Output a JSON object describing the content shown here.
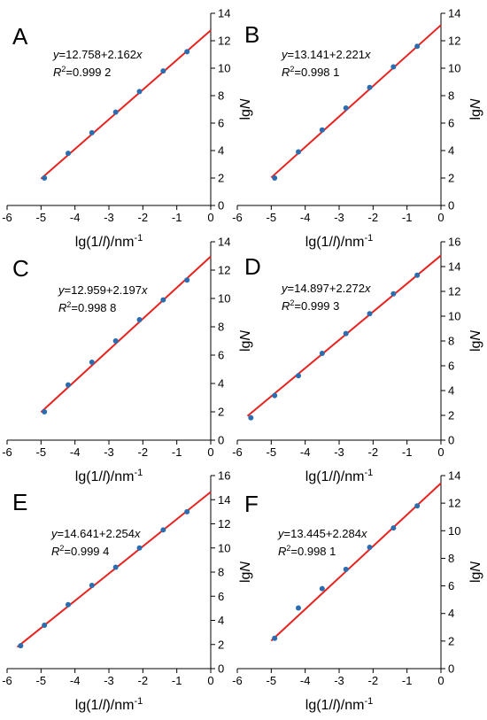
{
  "chart_data": [
    {
      "panel": "A",
      "type": "scatter",
      "xlabel": "lg(1/l)/nm-1",
      "ylabel": "lgN",
      "xlim": [
        -6,
        0
      ],
      "ylim": [
        0,
        14
      ],
      "xticks": [
        -6,
        -5,
        -4,
        -3,
        -2,
        -1,
        0
      ],
      "yticks": [
        0,
        2,
        4,
        6,
        8,
        10,
        12,
        14
      ],
      "equation": "y=12.758+2.162x",
      "r2": "R2=0.999 2",
      "fit": {
        "intercept": 12.758,
        "slope": 2.162
      },
      "points": [
        {
          "x": -4.9,
          "y": 2.0
        },
        {
          "x": -4.2,
          "y": 3.8
        },
        {
          "x": -3.5,
          "y": 5.3
        },
        {
          "x": -2.8,
          "y": 6.8
        },
        {
          "x": -2.1,
          "y": 8.3
        },
        {
          "x": -1.4,
          "y": 9.8
        },
        {
          "x": -0.7,
          "y": 11.2
        }
      ]
    },
    {
      "panel": "B",
      "type": "scatter",
      "xlabel": "lg(1/l)/nm-1",
      "ylabel": "lgN",
      "xlim": [
        -6,
        0
      ],
      "ylim": [
        0,
        14
      ],
      "xticks": [
        -6,
        -5,
        -4,
        -3,
        -2,
        -1,
        0
      ],
      "yticks": [
        0,
        2,
        4,
        6,
        8,
        10,
        12,
        14
      ],
      "equation": "y=13.141+2.221x",
      "r2": "R2=0.998 1",
      "fit": {
        "intercept": 13.141,
        "slope": 2.221
      },
      "points": [
        {
          "x": -4.9,
          "y": 2.0
        },
        {
          "x": -4.2,
          "y": 3.9
        },
        {
          "x": -3.5,
          "y": 5.5
        },
        {
          "x": -2.8,
          "y": 7.1
        },
        {
          "x": -2.1,
          "y": 8.6
        },
        {
          "x": -1.4,
          "y": 10.1
        },
        {
          "x": -0.7,
          "y": 11.6
        }
      ]
    },
    {
      "panel": "C",
      "type": "scatter",
      "xlabel": "lg(1/l)/nm-1",
      "ylabel": "lgN",
      "xlim": [
        -6,
        0
      ],
      "ylim": [
        0,
        14
      ],
      "xticks": [
        -6,
        -5,
        -4,
        -3,
        -2,
        -1,
        0
      ],
      "yticks": [
        0,
        2,
        4,
        6,
        8,
        10,
        12,
        14
      ],
      "equation": "y=12.959+2.197x",
      "r2": "R2=0.998 8",
      "fit": {
        "intercept": 12.959,
        "slope": 2.197
      },
      "points": [
        {
          "x": -4.9,
          "y": 2.0
        },
        {
          "x": -4.2,
          "y": 3.9
        },
        {
          "x": -3.5,
          "y": 5.5
        },
        {
          "x": -2.8,
          "y": 7.0
        },
        {
          "x": -2.1,
          "y": 8.5
        },
        {
          "x": -1.4,
          "y": 9.9
        },
        {
          "x": -0.7,
          "y": 11.3
        }
      ]
    },
    {
      "panel": "D",
      "type": "scatter",
      "xlabel": "lg(1/l)/nm-1",
      "ylabel": "lgN",
      "xlim": [
        -6,
        0
      ],
      "ylim": [
        0,
        16
      ],
      "xticks": [
        -6,
        -5,
        -4,
        -3,
        -2,
        -1,
        0
      ],
      "yticks": [
        0,
        2,
        4,
        6,
        8,
        10,
        12,
        14,
        16
      ],
      "equation": "y=14.897+2.272x",
      "r2": "R2=0.999 3",
      "fit": {
        "intercept": 14.897,
        "slope": 2.272
      },
      "points": [
        {
          "x": -5.6,
          "y": 1.8
        },
        {
          "x": -4.9,
          "y": 3.6
        },
        {
          "x": -4.2,
          "y": 5.2
        },
        {
          "x": -3.5,
          "y": 7.0
        },
        {
          "x": -2.8,
          "y": 8.6
        },
        {
          "x": -2.1,
          "y": 10.2
        },
        {
          "x": -1.4,
          "y": 11.8
        },
        {
          "x": -0.7,
          "y": 13.3
        }
      ]
    },
    {
      "panel": "E",
      "type": "scatter",
      "xlabel": "lg(1/l)/nm-1",
      "ylabel": "lgN",
      "xlim": [
        -6,
        0
      ],
      "ylim": [
        0,
        16
      ],
      "xticks": [
        -6,
        -5,
        -4,
        -3,
        -2,
        -1,
        0
      ],
      "yticks": [
        0,
        2,
        4,
        6,
        8,
        10,
        12,
        14,
        16
      ],
      "equation": "y=14.641+2.254x",
      "r2": "R2=0.999 4",
      "fit": {
        "intercept": 14.641,
        "slope": 2.254
      },
      "points": [
        {
          "x": -5.6,
          "y": 1.9
        },
        {
          "x": -4.9,
          "y": 3.6
        },
        {
          "x": -4.2,
          "y": 5.3
        },
        {
          "x": -3.5,
          "y": 6.9
        },
        {
          "x": -2.8,
          "y": 8.4
        },
        {
          "x": -2.1,
          "y": 10.0
        },
        {
          "x": -1.4,
          "y": 11.5
        },
        {
          "x": -0.7,
          "y": 13.0
        }
      ]
    },
    {
      "panel": "F",
      "type": "scatter",
      "xlabel": "lg(1/l)/nm-1",
      "ylabel": "lgN",
      "xlim": [
        -6,
        0
      ],
      "ylim": [
        0,
        14
      ],
      "xticks": [
        -6,
        -5,
        -4,
        -3,
        -2,
        -1,
        0
      ],
      "yticks": [
        0,
        2,
        4,
        6,
        8,
        10,
        12,
        14
      ],
      "equation": "y=13.445+2.284x",
      "r2": "R2=0.998 1",
      "fit": {
        "intercept": 13.445,
        "slope": 2.284
      },
      "points": [
        {
          "x": -4.9,
          "y": 2.2
        },
        {
          "x": -4.2,
          "y": 4.4
        },
        {
          "x": -3.5,
          "y": 5.8
        },
        {
          "x": -2.8,
          "y": 7.2
        },
        {
          "x": -2.1,
          "y": 8.8
        },
        {
          "x": -1.4,
          "y": 10.2
        },
        {
          "x": -0.7,
          "y": 11.8
        }
      ]
    }
  ]
}
